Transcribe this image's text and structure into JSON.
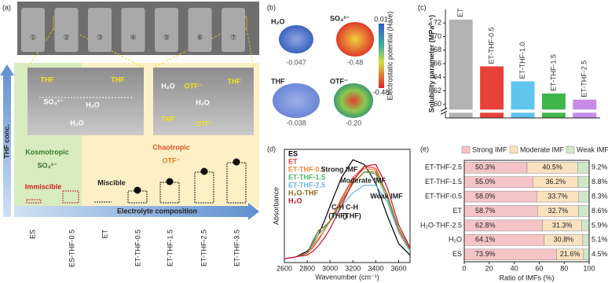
{
  "panel_a": {
    "label": "(a)",
    "vials": [
      "①",
      "②",
      "③",
      "④",
      "⑤",
      "⑥",
      "⑦"
    ],
    "inset_left": [
      "THF",
      "THF",
      "SO₄²⁻",
      "H₂O",
      "H₂O"
    ],
    "inset_right": [
      "H₂O",
      "OTF⁻",
      "H₂O",
      "THF",
      "OTF⁻",
      "THF"
    ],
    "axis_y": "THF conc.",
    "axis_x": "Electrolyte composition",
    "kosmotropic": "Kosmotropic",
    "kosmo_ion": "SO₄²⁻",
    "immiscible": "Immiscible",
    "chaotropic": "Chaotropic",
    "chao_ion": "OTF⁻",
    "miscible": "Miscible",
    "compositions": [
      "ES",
      "ES-THF-0.5",
      "ET",
      "ET-THF-0.5",
      "ET-THF-1.5",
      "ET-THF-2.5",
      "ET-THF-3.5"
    ]
  },
  "panel_b": {
    "label": "(b)",
    "molecules": [
      {
        "name": "H₂O",
        "potential": "-0.047"
      },
      {
        "name": "SO₄²⁻",
        "potential": "-0.48"
      },
      {
        "name": "THF",
        "potential": "-0.038"
      },
      {
        "name": "OTF⁻",
        "potential": "-0.20"
      }
    ],
    "colorbar_max": "0.01",
    "colorbar_min": "-0.48",
    "colorbar_label": "Electrostatic potential (Ha/e)"
  },
  "chart_data": [
    {
      "type": "bar",
      "label": "(c)",
      "ylabel": "Solubility parameter (MPa⁰·⁵)",
      "categories": [
        "ET",
        "ET-THF-0.5",
        "ET-THF-1.0",
        "ET-THF-1.5",
        "ET-THF-2.5"
      ],
      "values": [
        72.5,
        65.6,
        63.4,
        61.6,
        60.7
      ],
      "colors": [
        "#b3b3b3",
        "#e8413a",
        "#5fc4ee",
        "#3fb54a",
        "#c68be8"
      ],
      "ylim": [
        58,
        74
      ],
      "yticks": [
        60,
        62,
        64,
        66,
        68,
        70,
        72
      ],
      "axis_break": true
    },
    {
      "type": "line",
      "label": "(d)",
      "xlabel": "Wavenumber (cm⁻¹)",
      "ylabel": "Absorbance",
      "x": [
        2600,
        2700,
        2800,
        2850,
        2900,
        2950,
        3000,
        3100,
        3200,
        3300,
        3400,
        3500,
        3600,
        3700
      ],
      "xlim": [
        2600,
        3700
      ],
      "xticks": [
        2600,
        2800,
        3000,
        3200,
        3400,
        3600
      ],
      "ylim": [
        0,
        0.6
      ],
      "series": [
        {
          "name": "ES",
          "color": "#000000",
          "values": [
            0.02,
            0.03,
            0.06,
            0.1,
            0.15,
            0.22,
            0.3,
            0.45,
            0.545,
            0.52,
            0.42,
            0.25,
            0.1,
            0.04
          ]
        },
        {
          "name": "ET",
          "color": "#e8413a",
          "values": [
            0.02,
            0.03,
            0.05,
            0.08,
            0.12,
            0.17,
            0.22,
            0.34,
            0.45,
            0.51,
            0.5,
            0.36,
            0.17,
            0.07
          ]
        },
        {
          "name": "ET-THF-0.5",
          "color": "#f0883a",
          "values": [
            0.02,
            0.03,
            0.05,
            0.09,
            0.13,
            0.17,
            0.22,
            0.33,
            0.44,
            0.5,
            0.49,
            0.36,
            0.17,
            0.07
          ]
        },
        {
          "name": "ET-THF-1.5",
          "color": "#4fb86a",
          "values": [
            0.02,
            0.03,
            0.05,
            0.1,
            0.15,
            0.18,
            0.22,
            0.32,
            0.42,
            0.48,
            0.47,
            0.34,
            0.16,
            0.06
          ]
        },
        {
          "name": "ET-THF-2.5",
          "color": "#6cb6e0",
          "values": [
            0.02,
            0.03,
            0.05,
            0.12,
            0.17,
            0.19,
            0.22,
            0.3,
            0.37,
            0.41,
            0.41,
            0.32,
            0.16,
            0.06
          ]
        },
        {
          "name": "H₂O-THF",
          "color": "#8a6d1e",
          "values": [
            0.02,
            0.03,
            0.05,
            0.11,
            0.17,
            0.19,
            0.22,
            0.32,
            0.42,
            0.48,
            0.48,
            0.36,
            0.18,
            0.07
          ]
        },
        {
          "name": "H₂O",
          "color": "#c8102e",
          "values": [
            0.02,
            0.03,
            0.04,
            0.06,
            0.09,
            0.13,
            0.18,
            0.3,
            0.43,
            0.51,
            0.52,
            0.4,
            0.2,
            0.08
          ]
        }
      ],
      "annotations": [
        "Strong IMF",
        "Moderate IMF",
        "Weak IMF",
        "C-H",
        "C-H",
        "(THF)",
        "(THF)"
      ]
    },
    {
      "type": "stacked_barh",
      "label": "(e)",
      "xlabel": "Ratio of IMFs (%)",
      "categories": [
        "ET-THF-2.5",
        "ET-THF-1.5",
        "ET-THF-0.5",
        "ET",
        "H₂O-THF-2.5",
        "H₂O",
        "ES"
      ],
      "xlim": [
        0,
        100
      ],
      "xticks": [
        0,
        20,
        40,
        60,
        80,
        100
      ],
      "legend": "top",
      "series": [
        {
          "name": "Strong IMF",
          "color": "#f5c4c6",
          "values": [
            50.3,
            55.0,
            58.0,
            58.7,
            62.8,
            64.1,
            73.9
          ],
          "value_labels": [
            "50.3%",
            "55.0%",
            "58.0%",
            "58.7%",
            "62.8%",
            "64.1%",
            "73.9%"
          ]
        },
        {
          "name": "Moderate IMF",
          "color": "#fbe2bf",
          "values": [
            40.5,
            36.2,
            33.7,
            32.7,
            31.3,
            30.8,
            21.6
          ],
          "value_labels": [
            "40.5%",
            "36.2%",
            "33.7%",
            "32.7%",
            "31.3%",
            "30.8%",
            "21.6%"
          ]
        },
        {
          "name": "Weak IMF",
          "color": "#cfe9c8",
          "values": [
            9.2,
            8.8,
            8.3,
            8.6,
            5.9,
            5.1,
            4.5
          ],
          "value_labels": [
            "9.2%",
            "8.8%",
            "8.3%",
            "8.6%",
            "5.9%",
            "5.1%",
            "4.5%"
          ]
        }
      ]
    }
  ]
}
